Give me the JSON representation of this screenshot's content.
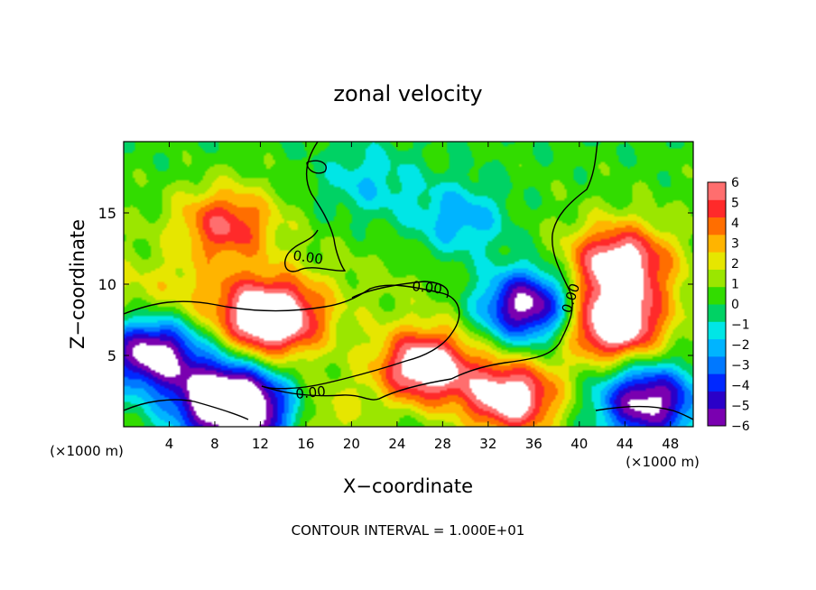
{
  "chart_data": {
    "type": "heatmap",
    "title": "zonal velocity",
    "xlabel": "X−coordinate",
    "ylabel": "Z−coordinate",
    "x_unit": "(×1000 m)",
    "y_unit": "(×1000 m)",
    "xlim": [
      0,
      50
    ],
    "ylim": [
      0,
      20
    ],
    "x_ticks": [
      4,
      8,
      12,
      16,
      20,
      24,
      28,
      32,
      36,
      40,
      44,
      48
    ],
    "y_ticks": [
      5,
      10,
      15
    ],
    "contour_labels": [
      "0.00",
      "0.00",
      "0.00",
      "0.00"
    ],
    "footer": "CONTOUR INTERVAL = 1.000E+01",
    "colorbar": {
      "ticks": [
        "6",
        "5",
        "4",
        "3",
        "2",
        "1",
        "0",
        "−1",
        "−2",
        "−3",
        "−4",
        "−5",
        "−6"
      ],
      "min": -6,
      "max": 6,
      "colors": [
        "#7a00b0",
        "#2a00c8",
        "#0028ff",
        "#0078ff",
        "#00b4ff",
        "#00e6e6",
        "#00d264",
        "#32dc00",
        "#9be600",
        "#e6e600",
        "#ffb400",
        "#ff6e00",
        "#ff2a2a",
        "#ff6e6e"
      ]
    },
    "blobs": [
      {
        "x": 9,
        "z": 14.2,
        "v": 4.5
      },
      {
        "x": 13,
        "z": 7.5,
        "v": 7.5
      },
      {
        "x": 26.5,
        "z": 4.2,
        "v": 7
      },
      {
        "x": 34,
        "z": 2.0,
        "v": 7
      },
      {
        "x": 43.5,
        "z": 11.5,
        "v": 6.5
      },
      {
        "x": 43,
        "z": 7.2,
        "v": 7.5
      },
      {
        "x": 35.5,
        "z": 8.5,
        "v": -7.5
      },
      {
        "x": 2.5,
        "z": 5.2,
        "v": -7.5
      },
      {
        "x": 8.5,
        "z": 2.0,
        "v": -7.5
      },
      {
        "x": 46,
        "z": 1.8,
        "v": -7
      },
      {
        "x": 29.5,
        "z": 14.5,
        "v": -3
      },
      {
        "x": 21.5,
        "z": 17.0,
        "v": -2
      },
      {
        "x": 11.5,
        "z": 1.0,
        "v": -5
      },
      {
        "x": 17.5,
        "z": 0.8,
        "v": 2
      }
    ]
  }
}
